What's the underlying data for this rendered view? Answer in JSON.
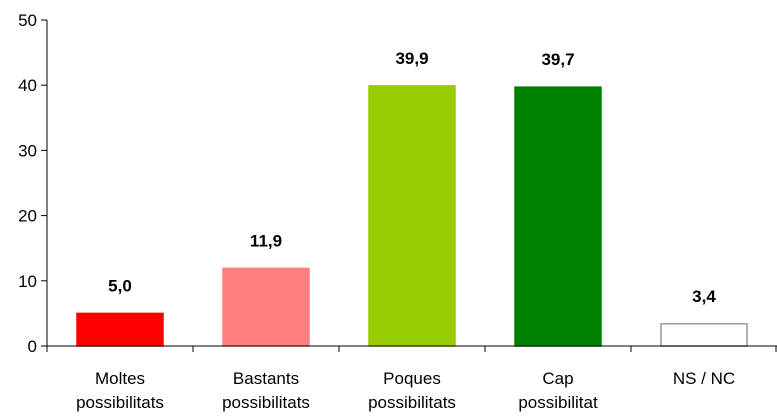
{
  "chart_data": {
    "type": "bar",
    "categories": [
      [
        "Moltes",
        "possibilitats"
      ],
      [
        "Bastants",
        "possibilitats"
      ],
      [
        "Poques",
        "possibilitats"
      ],
      [
        "Cap",
        "possibilitat"
      ],
      [
        "NS / NC"
      ]
    ],
    "values": [
      5.0,
      11.9,
      39.9,
      39.7,
      3.4
    ],
    "data_labels": [
      "5,0",
      "11,9",
      "39,9",
      "39,7",
      "3,4"
    ],
    "colors": [
      "#ff0000",
      "#ff7f7f",
      "#99cc00",
      "#008000",
      "#ffffff"
    ],
    "edge_colors": [
      "#ff0000",
      "#ff7f7f",
      "#99cc00",
      "#008000",
      "#999999"
    ],
    "ylim": [
      0,
      50
    ],
    "yticks": [
      0,
      10,
      20,
      30,
      40,
      50
    ],
    "ytick_labels": [
      "0",
      "10",
      "20",
      "30",
      "40",
      "50"
    ],
    "grid": false,
    "legend": "none"
  }
}
